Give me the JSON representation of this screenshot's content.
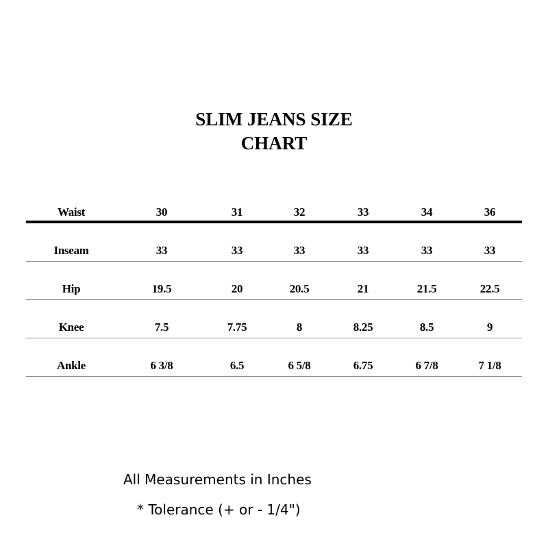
{
  "title": {
    "line1": "SLIM JEANS SIZE",
    "line2": "CHART"
  },
  "table": {
    "rows": [
      {
        "label": "Waist",
        "values": [
          "30",
          "31",
          "32",
          "33",
          "34",
          "36"
        ]
      },
      {
        "label": "Inseam",
        "values": [
          "33",
          "33",
          "33",
          "33",
          "33",
          "33"
        ]
      },
      {
        "label": "Hip",
        "values": [
          "19.5",
          "20",
          "20.5",
          "21",
          "21.5",
          "22.5"
        ]
      },
      {
        "label": "Knee",
        "values": [
          "7.5",
          "7.75",
          "8",
          "8.25",
          "8.5",
          "9"
        ]
      },
      {
        "label": "Ankle",
        "values": [
          "6 3/8",
          "6.5",
          "6 5/8",
          "6.75",
          "6 7/8",
          "7 1/8"
        ]
      }
    ]
  },
  "footer": {
    "units": "All Measurements in Inches",
    "tolerance": "* Tolerance (+ or - 1/4\")"
  }
}
